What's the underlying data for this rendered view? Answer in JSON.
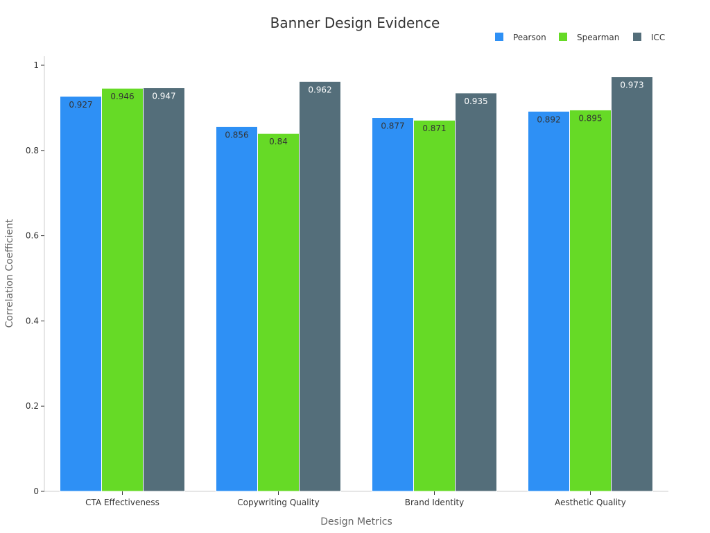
{
  "chart_data": {
    "type": "bar",
    "title": "Banner Design Evidence",
    "xlabel": "Design Metrics",
    "ylabel": "Correlation Coefficient",
    "ylim": [
      0,
      1
    ],
    "yticks": [
      "0",
      "0.2",
      "0.4",
      "0.6",
      "0.8",
      "1"
    ],
    "ytick_values": [
      0,
      0.2,
      0.4,
      0.6,
      0.8,
      1
    ],
    "categories": [
      "CTA Effectiveness",
      "Copywriting Quality",
      "Brand Identity",
      "Aesthetic Quality"
    ],
    "series": [
      {
        "name": "Pearson",
        "color": "#2e90f5",
        "label_color": "#333333",
        "values": [
          0.927,
          0.856,
          0.877,
          0.892
        ],
        "labels": [
          "0.927",
          "0.856",
          "0.877",
          "0.892"
        ]
      },
      {
        "name": "Spearman",
        "color": "#66da26",
        "label_color": "#333333",
        "values": [
          0.946,
          0.84,
          0.871,
          0.895
        ],
        "labels": [
          "0.946",
          "0.84",
          "0.871",
          "0.895"
        ]
      },
      {
        "name": "ICC",
        "color": "#546e7a",
        "label_color": "#ffffff",
        "values": [
          0.947,
          0.962,
          0.935,
          0.973
        ],
        "labels": [
          "0.947",
          "0.962",
          "0.935",
          "0.973"
        ]
      }
    ],
    "legend_position": "top-right",
    "grid": false
  }
}
